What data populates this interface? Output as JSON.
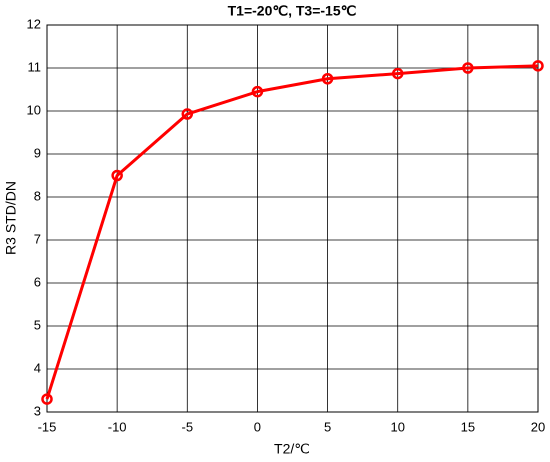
{
  "chart_data": {
    "type": "line",
    "title": "T1=-20℃, T3=-15℃",
    "x_label": "T2/℃",
    "y_label": "R3 STD/DN",
    "x": [
      -15,
      -10,
      -5,
      0,
      5,
      10,
      15,
      20
    ],
    "series": [
      {
        "name": "R3",
        "color": "#ff0000",
        "values": [
          3.3,
          8.5,
          9.93,
          10.45,
          10.75,
          10.87,
          11.0,
          11.05
        ]
      }
    ],
    "xlim": [
      -15,
      20
    ],
    "xticks": [
      -15,
      -10,
      -5,
      0,
      5,
      10,
      15,
      20
    ],
    "ylim": [
      3,
      12
    ],
    "yticks": [
      3,
      4,
      5,
      6,
      7,
      8,
      9,
      10,
      11,
      12
    ],
    "grid": true
  }
}
